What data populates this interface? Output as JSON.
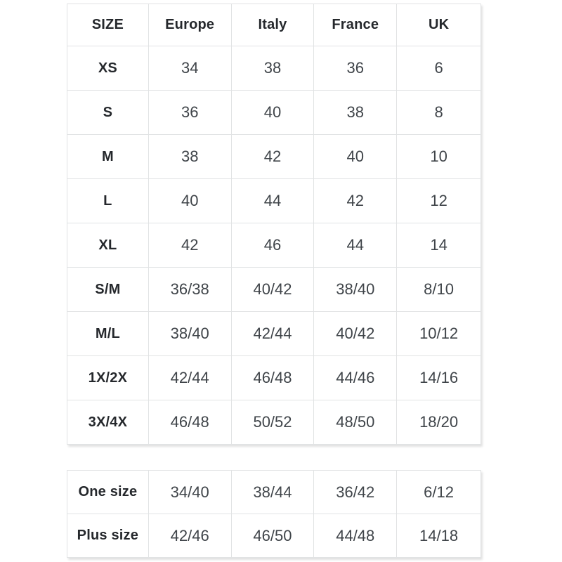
{
  "main_table": {
    "headers": [
      "SIZE",
      "Europe",
      "Italy",
      "France",
      "UK"
    ],
    "rows": [
      {
        "size": "XS",
        "values": [
          "34",
          "38",
          "36",
          "6"
        ]
      },
      {
        "size": "S",
        "values": [
          "36",
          "40",
          "38",
          "8"
        ]
      },
      {
        "size": "M",
        "values": [
          "38",
          "42",
          "40",
          "10"
        ]
      },
      {
        "size": "L",
        "values": [
          "40",
          "44",
          "42",
          "12"
        ]
      },
      {
        "size": "XL",
        "values": [
          "42",
          "46",
          "44",
          "14"
        ]
      },
      {
        "size": "S/M",
        "values": [
          "36/38",
          "40/42",
          "38/40",
          "8/10"
        ]
      },
      {
        "size": "M/L",
        "values": [
          "38/40",
          "42/44",
          "40/42",
          "10/12"
        ]
      },
      {
        "size": "1X/2X",
        "values": [
          "42/44",
          "46/48",
          "44/46",
          "14/16"
        ]
      },
      {
        "size": "3X/4X",
        "values": [
          "46/48",
          "50/52",
          "48/50",
          "18/20"
        ]
      }
    ]
  },
  "extra_table": {
    "rows": [
      {
        "size": "One size",
        "values": [
          "34/40",
          "38/44",
          "36/42",
          "6/12"
        ]
      },
      {
        "size": "Plus size",
        "values": [
          "42/46",
          "46/50",
          "44/48",
          "14/18"
        ]
      }
    ]
  },
  "colors": {
    "background": "#ffffff",
    "border": "#e1e3e4",
    "header_text": "#25282c",
    "value_text": "#3f4449"
  }
}
